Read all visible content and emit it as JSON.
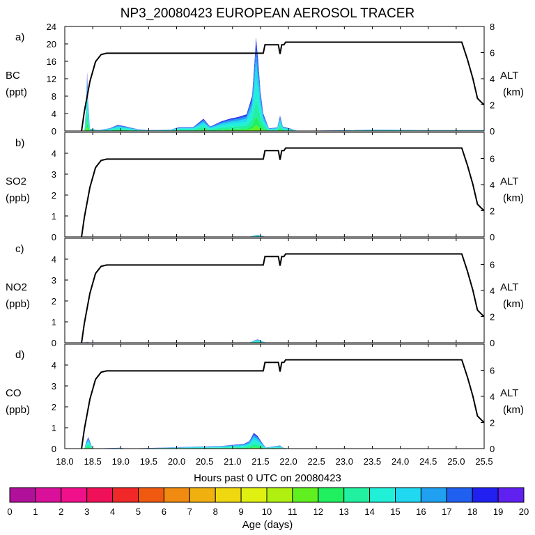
{
  "title": "NP3_20080423 EUROPEAN AEROSOL TRACER",
  "xlabel": "Hours past 0 UTC on 20080423",
  "x_ticks": [
    "18.0",
    "18.5",
    "19.0",
    "19.5",
    "20.0",
    "20.5",
    "21.0",
    "21.5",
    "22.0",
    "22.5",
    "23.0",
    "23.5",
    "24.0",
    "24.5",
    "25.0",
    "25.5"
  ],
  "colorbar": {
    "label": "Age (days)",
    "ticks": [
      "0",
      "1",
      "2",
      "3",
      "4",
      "5",
      "6",
      "7",
      "8",
      "9",
      "10",
      "11",
      "12",
      "13",
      "14",
      "15",
      "16",
      "17",
      "18",
      "19",
      "20"
    ],
    "colors": [
      "#8a1a8a",
      "#b0109a",
      "#d8109a",
      "#f0108a",
      "#f0105a",
      "#f02828",
      "#f05a10",
      "#f08a10",
      "#f0b010",
      "#f0d810",
      "#e0f010",
      "#b0f010",
      "#60f020",
      "#20f060",
      "#20f0a0",
      "#20f0d8",
      "#20d8f0",
      "#20a0f0",
      "#2060f0",
      "#2020f0",
      "#6020f0"
    ]
  },
  "chart_data": [
    {
      "type": "area",
      "panel_label": "a)",
      "species": "BC",
      "unit": "(ppt)",
      "ylim": [
        0,
        24
      ],
      "y_ticks": [
        "0",
        "4",
        "8",
        "12",
        "16",
        "20",
        "24"
      ],
      "alt_label": "ALT",
      "alt_unit": "(km)",
      "alt_ylim": [
        0,
        8
      ],
      "alt_ticks": [
        "0",
        "2",
        "4",
        "6",
        "8"
      ],
      "concentration": [
        [
          18.35,
          0
        ],
        [
          18.38,
          5
        ],
        [
          18.4,
          13.5
        ],
        [
          18.42,
          6
        ],
        [
          18.45,
          0.5
        ],
        [
          18.6,
          0.2
        ],
        [
          18.8,
          0.6
        ],
        [
          18.95,
          1.4
        ],
        [
          19.1,
          1.0
        ],
        [
          19.3,
          0.4
        ],
        [
          19.5,
          0.2
        ],
        [
          19.9,
          0.3
        ],
        [
          20.05,
          0.9
        ],
        [
          20.3,
          0.9
        ],
        [
          20.48,
          2.8
        ],
        [
          20.6,
          1.0
        ],
        [
          20.8,
          2.2
        ],
        [
          20.95,
          2.8
        ],
        [
          21.1,
          3.2
        ],
        [
          21.25,
          3.8
        ],
        [
          21.35,
          8
        ],
        [
          21.4,
          17
        ],
        [
          21.42,
          21.5
        ],
        [
          21.46,
          16
        ],
        [
          21.5,
          9
        ],
        [
          21.55,
          4
        ],
        [
          21.65,
          0.6
        ],
        [
          21.8,
          0.8
        ],
        [
          21.85,
          3.5
        ],
        [
          21.9,
          1.0
        ],
        [
          22.05,
          0.5
        ],
        [
          22.15,
          0
        ],
        [
          23.6,
          0.3
        ],
        [
          24.3,
          0.2
        ],
        [
          25.0,
          0.2
        ],
        [
          25.5,
          0.2
        ]
      ]
    },
    {
      "type": "area",
      "panel_label": "b)",
      "species": "SO2",
      "unit": "(ppb)",
      "ylim": [
        0,
        5
      ],
      "y_ticks": [
        "0",
        "1",
        "2",
        "3",
        "4"
      ],
      "alt_label": "ALT",
      "alt_unit": "(km)",
      "alt_ylim": [
        0,
        8
      ],
      "alt_ticks": [
        "0",
        "2",
        "4",
        "6"
      ],
      "concentration": [
        [
          18.35,
          0
        ],
        [
          18.4,
          0.02
        ],
        [
          18.45,
          0
        ],
        [
          21.3,
          0
        ],
        [
          21.38,
          0.06
        ],
        [
          21.45,
          0.1
        ],
        [
          21.52,
          0.05
        ],
        [
          21.6,
          0
        ]
      ]
    },
    {
      "type": "area",
      "panel_label": "c)",
      "species": "NO2",
      "unit": "(ppb)",
      "ylim": [
        0,
        5
      ],
      "y_ticks": [
        "0",
        "1",
        "2",
        "3",
        "4"
      ],
      "alt_label": "ALT",
      "alt_unit": "(km)",
      "alt_ylim": [
        0,
        8
      ],
      "alt_ticks": [
        "0",
        "2",
        "4",
        "6"
      ],
      "concentration": [
        [
          18.35,
          0
        ],
        [
          18.4,
          0.04
        ],
        [
          18.45,
          0
        ],
        [
          21.3,
          0
        ],
        [
          21.38,
          0.1
        ],
        [
          21.45,
          0.16
        ],
        [
          21.52,
          0.08
        ],
        [
          21.6,
          0
        ]
      ]
    },
    {
      "type": "area",
      "panel_label": "d)",
      "species": "CO",
      "unit": "(ppb)",
      "ylim": [
        0,
        5
      ],
      "y_ticks": [
        "0",
        "1",
        "2",
        "3",
        "4"
      ],
      "alt_label": "ALT",
      "alt_unit": "(km)",
      "alt_ylim": [
        0,
        8
      ],
      "alt_ticks": [
        "0",
        "2",
        "4",
        "6"
      ],
      "concentration": [
        [
          18.35,
          0
        ],
        [
          18.38,
          0.3
        ],
        [
          18.42,
          0.55
        ],
        [
          18.47,
          0.2
        ],
        [
          18.5,
          0
        ],
        [
          19.0,
          0.04
        ],
        [
          19.1,
          0
        ],
        [
          20.5,
          0.1
        ],
        [
          20.8,
          0.12
        ],
        [
          21.0,
          0.18
        ],
        [
          21.2,
          0.22
        ],
        [
          21.3,
          0.35
        ],
        [
          21.38,
          0.75
        ],
        [
          21.45,
          0.6
        ],
        [
          21.55,
          0.2
        ],
        [
          21.6,
          0.05
        ],
        [
          21.85,
          0.15
        ],
        [
          21.9,
          0.05
        ],
        [
          22.0,
          0
        ]
      ]
    }
  ],
  "altitude_profile": [
    [
      18.3,
      0
    ],
    [
      18.35,
      1.5
    ],
    [
      18.45,
      3.8
    ],
    [
      18.55,
      5.3
    ],
    [
      18.65,
      5.85
    ],
    [
      18.75,
      5.95
    ],
    [
      21.55,
      5.95
    ],
    [
      21.58,
      6.6
    ],
    [
      21.82,
      6.6
    ],
    [
      21.85,
      5.9
    ],
    [
      21.88,
      6.6
    ],
    [
      21.92,
      6.6
    ],
    [
      21.95,
      6.8
    ],
    [
      25.1,
      6.8
    ],
    [
      25.2,
      5.5
    ],
    [
      25.3,
      4.0
    ],
    [
      25.38,
      2.5
    ],
    [
      25.45,
      2.2
    ],
    [
      25.5,
      2.0
    ]
  ]
}
